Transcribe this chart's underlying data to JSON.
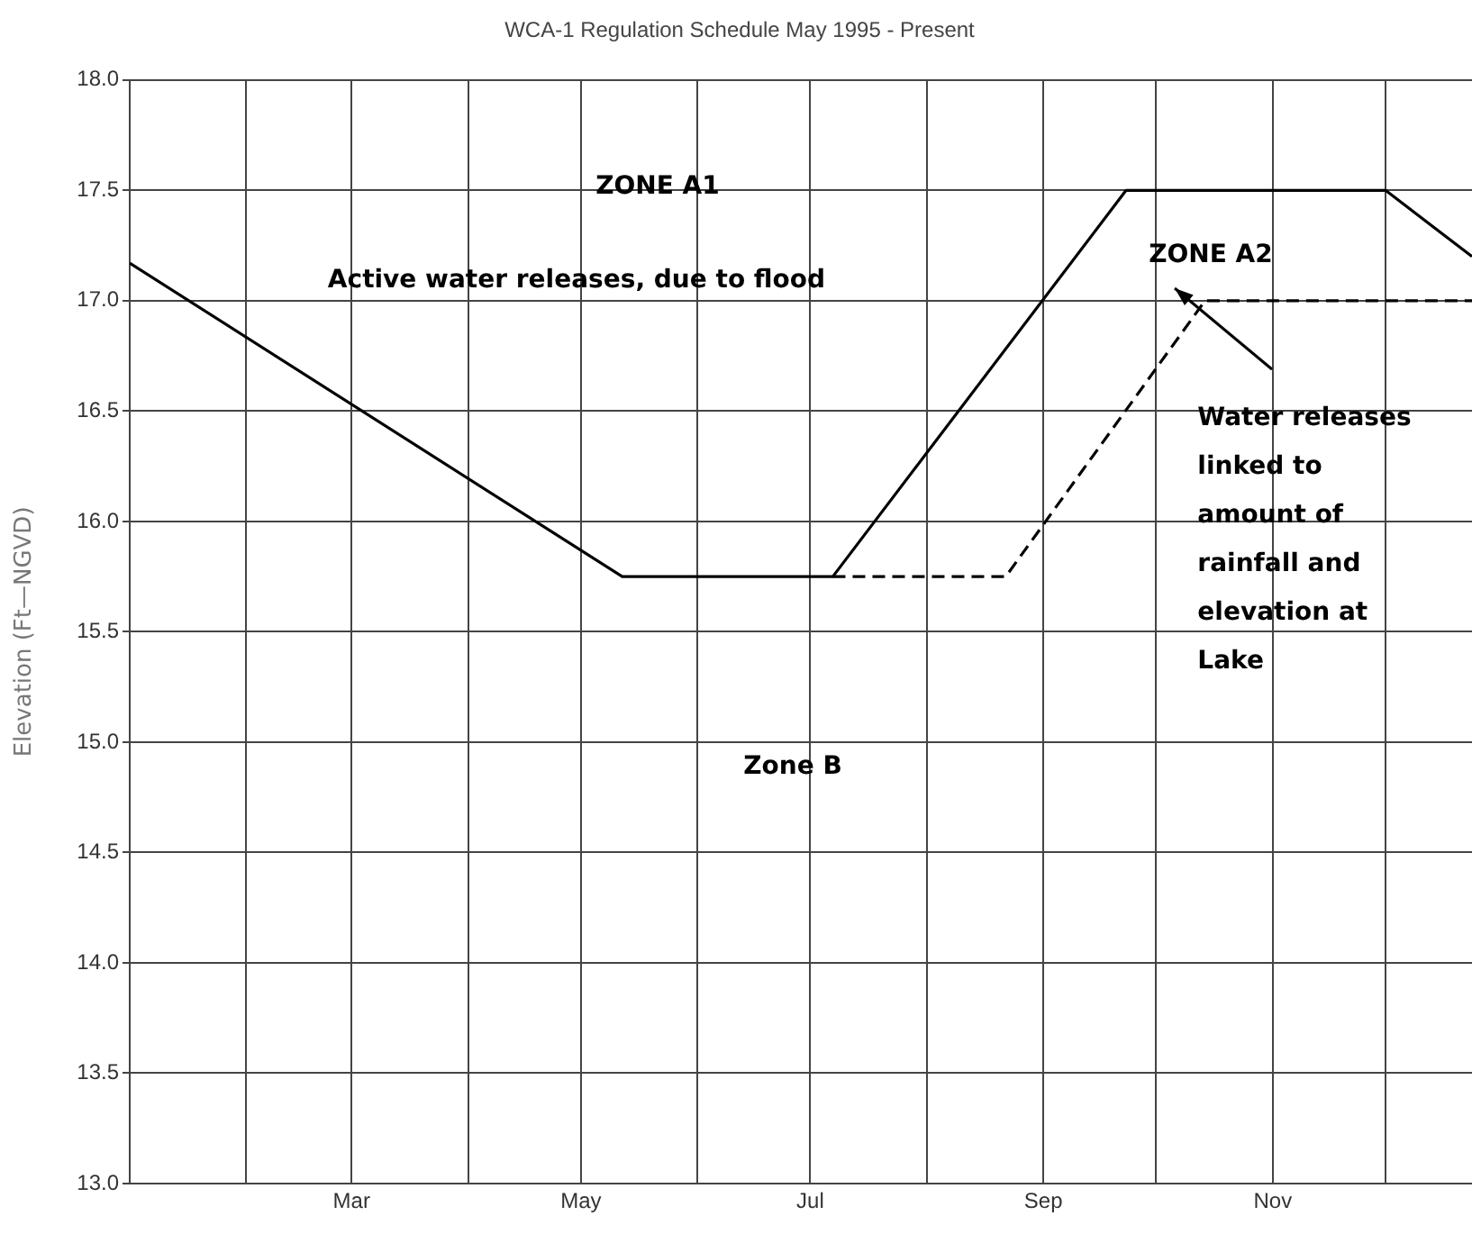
{
  "chart_data": {
    "type": "line",
    "title": "WCA-1 Regulation Schedule May 1995 - Present",
    "ylabel": "Elevation (Ft—NGVD)",
    "series": [
      {
        "color": "#000000",
        "line_style": "solid",
        "x": [
          "--01-01",
          "--05-12",
          "--07-07",
          "--09-23",
          "--12-01",
          "--12-24"
        ],
        "values": [
          17.17,
          15.75,
          15.75,
          17.5,
          17.5,
          17.2
        ]
      },
      {
        "color": "#000000",
        "line_style": "dashed",
        "x": [
          "--07-07",
          "--08-22",
          "--10-14",
          "--12-24"
        ],
        "values": [
          15.75,
          15.75,
          17.0,
          17.0
        ]
      }
    ],
    "xlim": [
      "--01-01",
      "--12-24"
    ],
    "xticks": [
      {
        "value": "--02-01",
        "label": null
      },
      {
        "value": "--03-01",
        "label": "Mar"
      },
      {
        "value": "--04-01",
        "label": null
      },
      {
        "value": "--05-01",
        "label": "May"
      },
      {
        "value": "--06-01",
        "label": null
      },
      {
        "value": "--07-01",
        "label": "Jul"
      },
      {
        "value": "--08-01",
        "label": null
      },
      {
        "value": "--09-01",
        "label": "Sep"
      },
      {
        "value": "--10-01",
        "label": null
      },
      {
        "value": "--11-01",
        "label": "Nov"
      },
      {
        "value": "--12-01",
        "label": null
      }
    ],
    "ylim": [
      13,
      18
    ],
    "yticks": [
      {
        "value": 13,
        "label": "13.0"
      },
      {
        "value": 13.5,
        "label": "13.5"
      },
      {
        "value": 14,
        "label": "14.0"
      },
      {
        "value": 14.5,
        "label": "14.5"
      },
      {
        "value": 15,
        "label": "15.0"
      },
      {
        "value": 15.5,
        "label": "15.5"
      },
      {
        "value": 16,
        "label": "16.0"
      },
      {
        "value": 16.5,
        "label": "16.5"
      },
      {
        "value": 17,
        "label": "17.0"
      },
      {
        "value": 17.5,
        "label": "17.5"
      },
      {
        "value": 18,
        "label": "18.0"
      }
    ],
    "grid": true,
    "legend": false,
    "annotations": [
      "ZONE A1",
      "Active water releases, due to flood",
      "ZONE A2",
      "Water releases\nlinked to\namount of\nrainfall and\nelevation at\nLake",
      "Zone B"
    ]
  }
}
